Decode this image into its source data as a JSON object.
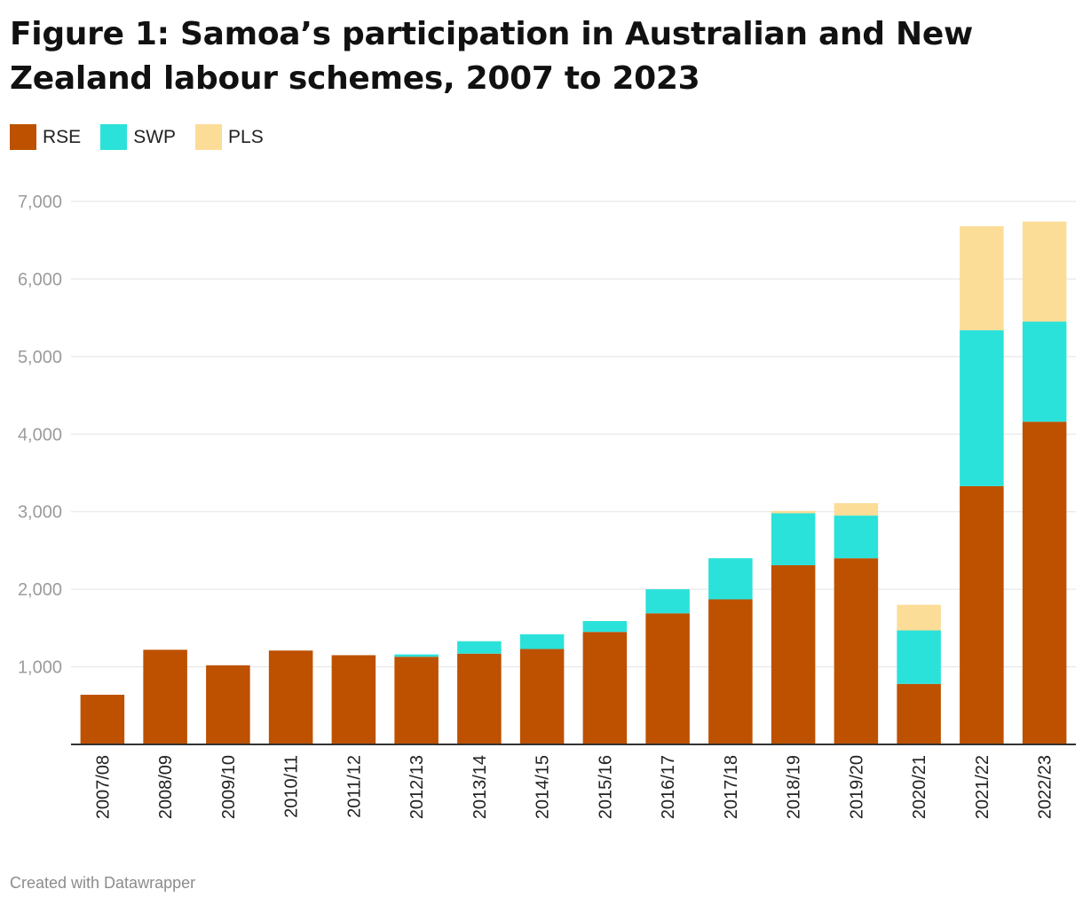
{
  "title": "Figure 1: Samoa’s participation in Australian and New Zealand labour schemes, 2007 to 2023",
  "footer": "Created with Datawrapper",
  "colors": {
    "RSE": "#bd5100",
    "SWP": "#2ae2da",
    "PLS": "#fcdd98",
    "grid": "#e3e3e3",
    "axis": "#333333"
  },
  "chart_data": {
    "type": "bar",
    "stacked": true,
    "categories": [
      "2007/08",
      "2008/09",
      "2009/10",
      "2010/11",
      "2011/12",
      "2012/13",
      "2013/14",
      "2014/15",
      "2015/16",
      "2016/17",
      "2017/18",
      "2018/19",
      "2019/20",
      "2020/21",
      "2021/22",
      "2022/23"
    ],
    "series": [
      {
        "name": "RSE",
        "values": [
          640,
          1220,
          1020,
          1210,
          1150,
          1130,
          1170,
          1230,
          1450,
          1690,
          1870,
          2310,
          2400,
          780,
          3330,
          4160
        ]
      },
      {
        "name": "SWP",
        "values": [
          0,
          0,
          0,
          0,
          0,
          30,
          160,
          190,
          140,
          310,
          530,
          670,
          550,
          690,
          2010,
          1290
        ]
      },
      {
        "name": "PLS",
        "values": [
          0,
          0,
          0,
          0,
          0,
          0,
          0,
          0,
          0,
          0,
          0,
          30,
          160,
          330,
          1340,
          1290
        ]
      }
    ],
    "yticks": [
      1000,
      2000,
      3000,
      4000,
      5000,
      6000,
      7000
    ],
    "ytick_labels": [
      "1,000",
      "2,000",
      "3,000",
      "4,000",
      "5,000",
      "6,000",
      "7,000"
    ],
    "ylim": [
      0,
      7000
    ],
    "grid": true,
    "legend_position": "top-left"
  }
}
